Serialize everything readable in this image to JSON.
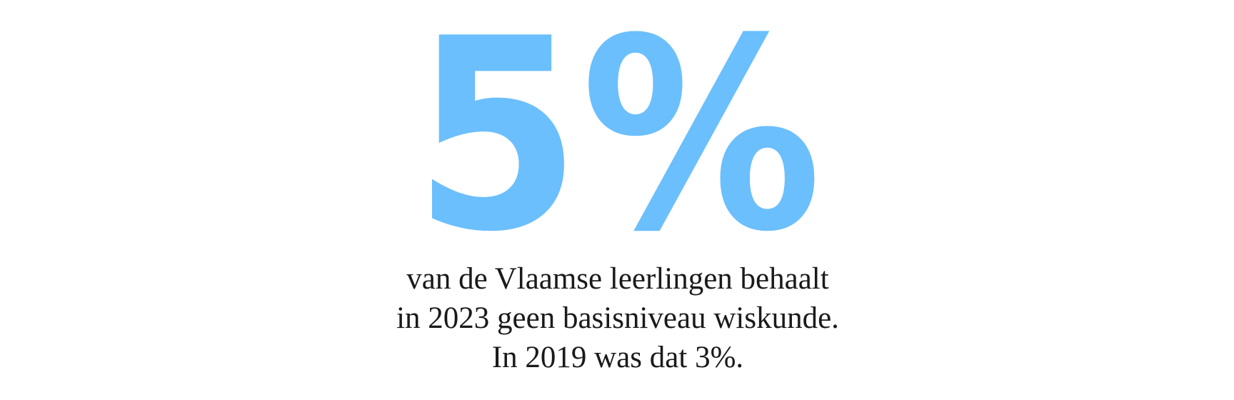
{
  "headline": {
    "figure": "5%"
  },
  "caption": {
    "lines": [
      "van de Vlaamse leerlingen behaalt",
      "in 2023 geen basisniveau wiskunde.",
      "In 2019 was dat 3%."
    ]
  }
}
